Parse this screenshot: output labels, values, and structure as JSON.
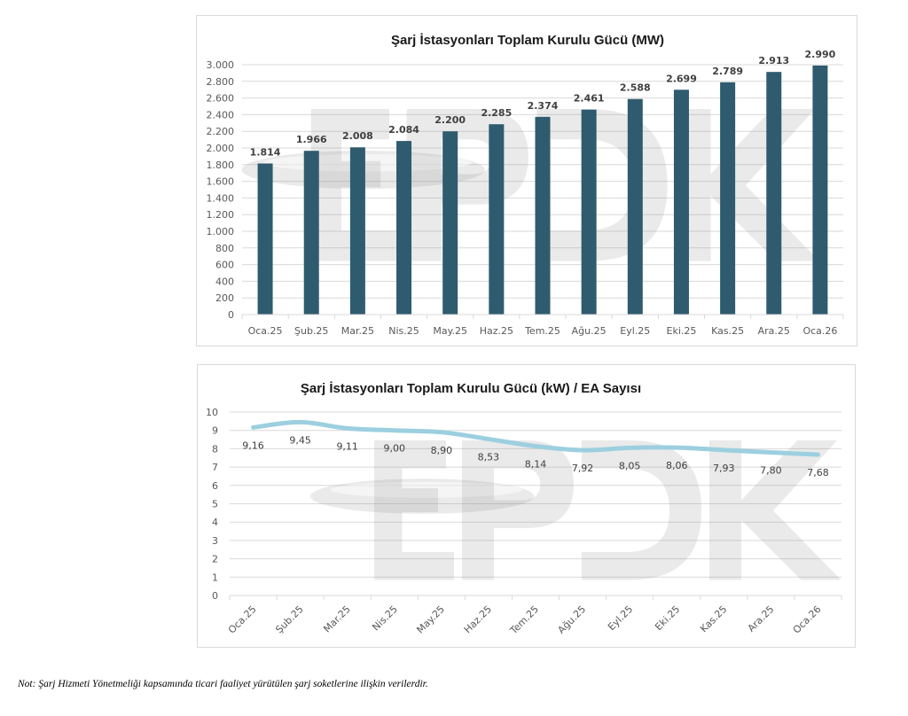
{
  "chart_data": [
    {
      "type": "bar",
      "title": "Şarj İstasyonları Toplam Kurulu Gücü (MW)",
      "xlabel": "",
      "ylabel": "",
      "categories": [
        "Oca.25",
        "Şub.25",
        "Mar.25",
        "Nis.25",
        "May.25",
        "Haz.25",
        "Tem.25",
        "Ağu.25",
        "Eyl.25",
        "Eki.25",
        "Kas.25",
        "Ara.25",
        "Oca.26"
      ],
      "values": [
        1814,
        1966,
        2008,
        2084,
        2200,
        2285,
        2374,
        2461,
        2588,
        2699,
        2789,
        2913,
        2990
      ],
      "value_labels": [
        "1.814",
        "1.966",
        "2.008",
        "2.084",
        "2.200",
        "2.285",
        "2.374",
        "2.461",
        "2.588",
        "2.699",
        "2.789",
        "2.913",
        "2.990"
      ],
      "ylim": [
        0,
        3000
      ],
      "yticks": [
        0,
        200,
        400,
        600,
        800,
        1000,
        1200,
        1400,
        1600,
        1800,
        2000,
        2200,
        2400,
        2600,
        2800,
        3000
      ],
      "ytick_labels": [
        "0",
        "200",
        "400",
        "600",
        "800",
        "1.000",
        "1.200",
        "1.400",
        "1.600",
        "1.800",
        "2.000",
        "2.200",
        "2.400",
        "2.600",
        "2.800",
        "3.000"
      ],
      "grid": true,
      "legend": "none",
      "bar_color": "#2f5b6e"
    },
    {
      "type": "line",
      "title": "Şarj İstasyonları Toplam Kurulu Gücü (kW) / EA Sayısı",
      "xlabel": "",
      "ylabel": "",
      "categories": [
        "Oca.25",
        "Şub.25",
        "Mar.25",
        "Nis.25",
        "May.25",
        "Haz.25",
        "Tem.25",
        "Ağu.25",
        "Eyl.25",
        "Eki.25",
        "Kas.25",
        "Ara.25",
        "Oca.26"
      ],
      "values": [
        9.16,
        9.45,
        9.11,
        9.0,
        8.9,
        8.53,
        8.14,
        7.92,
        8.05,
        8.06,
        7.93,
        7.8,
        7.68
      ],
      "value_labels": [
        "9,16",
        "9,45",
        "9,11",
        "9,00",
        "8,90",
        "8,53",
        "8,14",
        "7,92",
        "8,05",
        "8,06",
        "7,93",
        "7,80",
        "7,68"
      ],
      "ylim": [
        0,
        10
      ],
      "yticks": [
        0,
        1,
        2,
        3,
        4,
        5,
        6,
        7,
        8,
        9,
        10
      ],
      "ytick_labels": [
        "0",
        "1",
        "2",
        "3",
        "4",
        "5",
        "6",
        "7",
        "8",
        "9",
        "10"
      ],
      "grid": true,
      "legend": "none",
      "line_color": "#9ccfdf"
    }
  ],
  "watermark": "EPDK",
  "footnote": "Not: Şarj Hizmeti Yönetmeliği kapsamında ticari faaliyet yürütülen şarj soketlerine ilişkin verilerdir."
}
